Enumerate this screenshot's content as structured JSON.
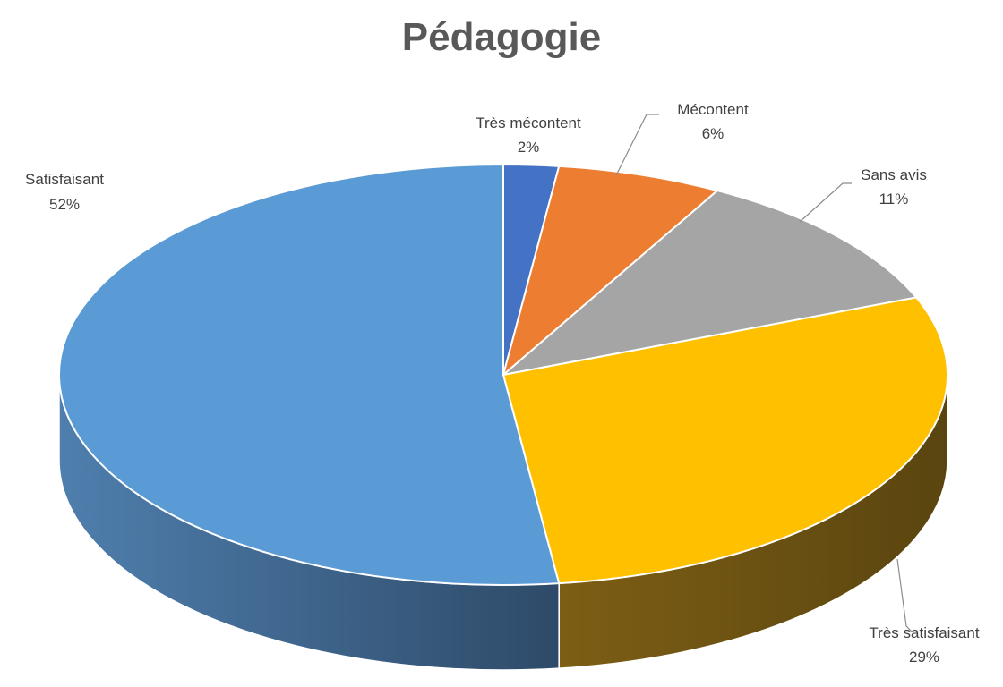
{
  "chart_data": {
    "type": "pie",
    "title": "Pédagogie",
    "legend": "none",
    "slices": [
      {
        "name": "Très mécontent",
        "value": 2,
        "label": "2%",
        "color": "#4472C4"
      },
      {
        "name": "Mécontent",
        "value": 6,
        "label": "6%",
        "color": "#ED7D31"
      },
      {
        "name": "Sans avis",
        "value": 11,
        "label": "11%",
        "color": "#A5A5A5"
      },
      {
        "name": "Très satisfaisant",
        "value": 29,
        "label": "29%",
        "color": "#FFC000"
      },
      {
        "name": "Satisfaisant",
        "value": 52,
        "label": "52%",
        "color": "#5B9BD5"
      }
    ]
  }
}
